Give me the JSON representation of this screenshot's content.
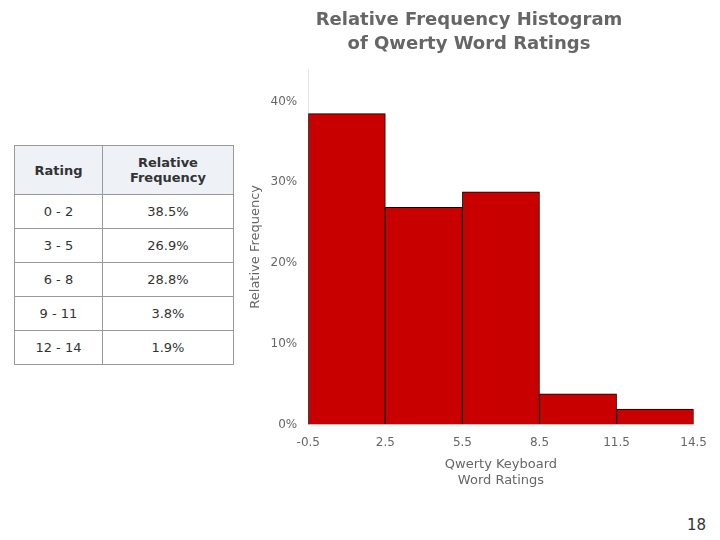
{
  "chart_data": {
    "type": "histogram",
    "title": "Relative Frequency Histogram",
    "subtitle": "of Qwerty Word Ratings",
    "bins": [
      -0.5,
      2.5,
      5.5,
      8.5,
      11.5,
      14.5
    ],
    "values": [
      0.385,
      0.269,
      0.288,
      0.038,
      0.019
    ],
    "color": "#c80000",
    "xlabel": "Qwerty Keyboard\nWord Ratings",
    "ylabel": "Relative Frequency",
    "xlim": [
      -0.5,
      14.5
    ],
    "xticks": [
      -0.5,
      2.5,
      5.5,
      8.5,
      11.5,
      14.5
    ],
    "ylim": [
      0,
      0.44
    ],
    "yticks": [
      {
        "value": 0.0,
        "label": "0%"
      },
      {
        "value": 0.1,
        "label": "10%"
      },
      {
        "value": 0.2,
        "label": "20%"
      },
      {
        "value": 0.3,
        "label": "30%"
      },
      {
        "value": 0.4,
        "label": "40%"
      }
    ],
    "grid": false,
    "table": {
      "headers": [
        "Rating",
        "Relative\nFrequency"
      ],
      "rows": [
        [
          "0 - 2",
          "38.5%"
        ],
        [
          "3 - 5",
          "26.9%"
        ],
        [
          "6 - 8",
          "28.8%"
        ],
        [
          "9 - 11",
          "3.8%"
        ],
        [
          "12 - 14",
          "1.9%"
        ]
      ]
    },
    "footnote": "18"
  }
}
